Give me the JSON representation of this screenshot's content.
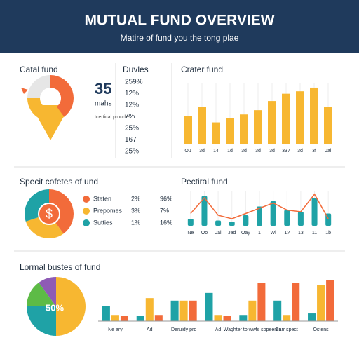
{
  "header": {
    "title": "MUTUAL FUND OVERVIEW",
    "subtitle": "Matire of fund you the tong plae"
  },
  "chart_data": [
    {
      "type": "donut",
      "title": "Catal fund",
      "values": [
        40,
        35,
        25
      ],
      "colors": [
        "#f26b3a",
        "#f7b731",
        "#e6e6e6"
      ],
      "annotations": [
        "35",
        "mahs",
        "tcertical proudes"
      ]
    },
    {
      "type": "list",
      "title": "Duvles",
      "items": [
        "259%",
        "12%",
        "12%",
        "7%",
        "25%",
        "167",
        "25%"
      ]
    },
    {
      "type": "bar",
      "title": "Crater fund",
      "color": "#f7b731",
      "ylim": [
        0,
        100
      ],
      "categories": [
        "Ou",
        "3d",
        "14",
        "1d",
        "3d",
        "3d",
        "3d",
        "337",
        "3d",
        "3f",
        "Jal"
      ],
      "values": [
        45,
        60,
        35,
        42,
        48,
        55,
        70,
        82,
        86,
        92,
        60
      ]
    },
    {
      "type": "pie",
      "title": "Specit cofetes of und",
      "center_label": "$",
      "categories": [
        "Staten",
        "Prepomes",
        "Sutties"
      ],
      "values": [
        40,
        30,
        30
      ],
      "colors": [
        "#f26b3a",
        "#f7b731",
        "#1fa2a6"
      ],
      "col1": [
        "2%",
        "3%",
        "1%"
      ],
      "col2": [
        "96%",
        "7%",
        "16%"
      ]
    },
    {
      "type": "combo",
      "title": "Pectiral fund",
      "ylim": [
        0,
        100
      ],
      "categories": [
        "Ne",
        "Oo",
        "Jal",
        "Jad",
        "Oay",
        "1",
        "Wl",
        "1?",
        "13",
        "11",
        "1b"
      ],
      "series": [
        {
          "color": "#1fa2a6",
          "values": [
            20,
            85,
            15,
            12,
            30,
            55,
            70,
            45,
            40,
            80,
            35
          ]
        },
        {
          "color": "#f26b3a",
          "values": [
            35,
            80,
            30,
            20,
            35,
            50,
            65,
            45,
            40,
            90,
            20
          ]
        }
      ]
    },
    {
      "type": "pie",
      "title": "Lormal bustes of fund",
      "center_label": "50%",
      "values": [
        50,
        25,
        15,
        10
      ],
      "colors": [
        "#f7b731",
        "#1fa2a6",
        "#5dbb46",
        "#8e5bb5"
      ]
    },
    {
      "type": "grouped-bar",
      "ylim": [
        0,
        100
      ],
      "categories": [
        "Ne ary",
        "Ad",
        "Deruidy prd",
        "Ad",
        "Waghter to wwfs sopeeres",
        "Carr spect",
        "Ostens"
      ],
      "series": [
        {
          "color": "#1fa2a6",
          "values": [
            30,
            10,
            40,
            55,
            12,
            40,
            15
          ]
        },
        {
          "color": "#f7b731",
          "values": [
            12,
            45,
            40,
            12,
            40,
            12,
            70
          ]
        },
        {
          "color": "#f26b3a",
          "values": [
            10,
            12,
            40,
            10,
            75,
            75,
            80
          ]
        }
      ]
    }
  ]
}
